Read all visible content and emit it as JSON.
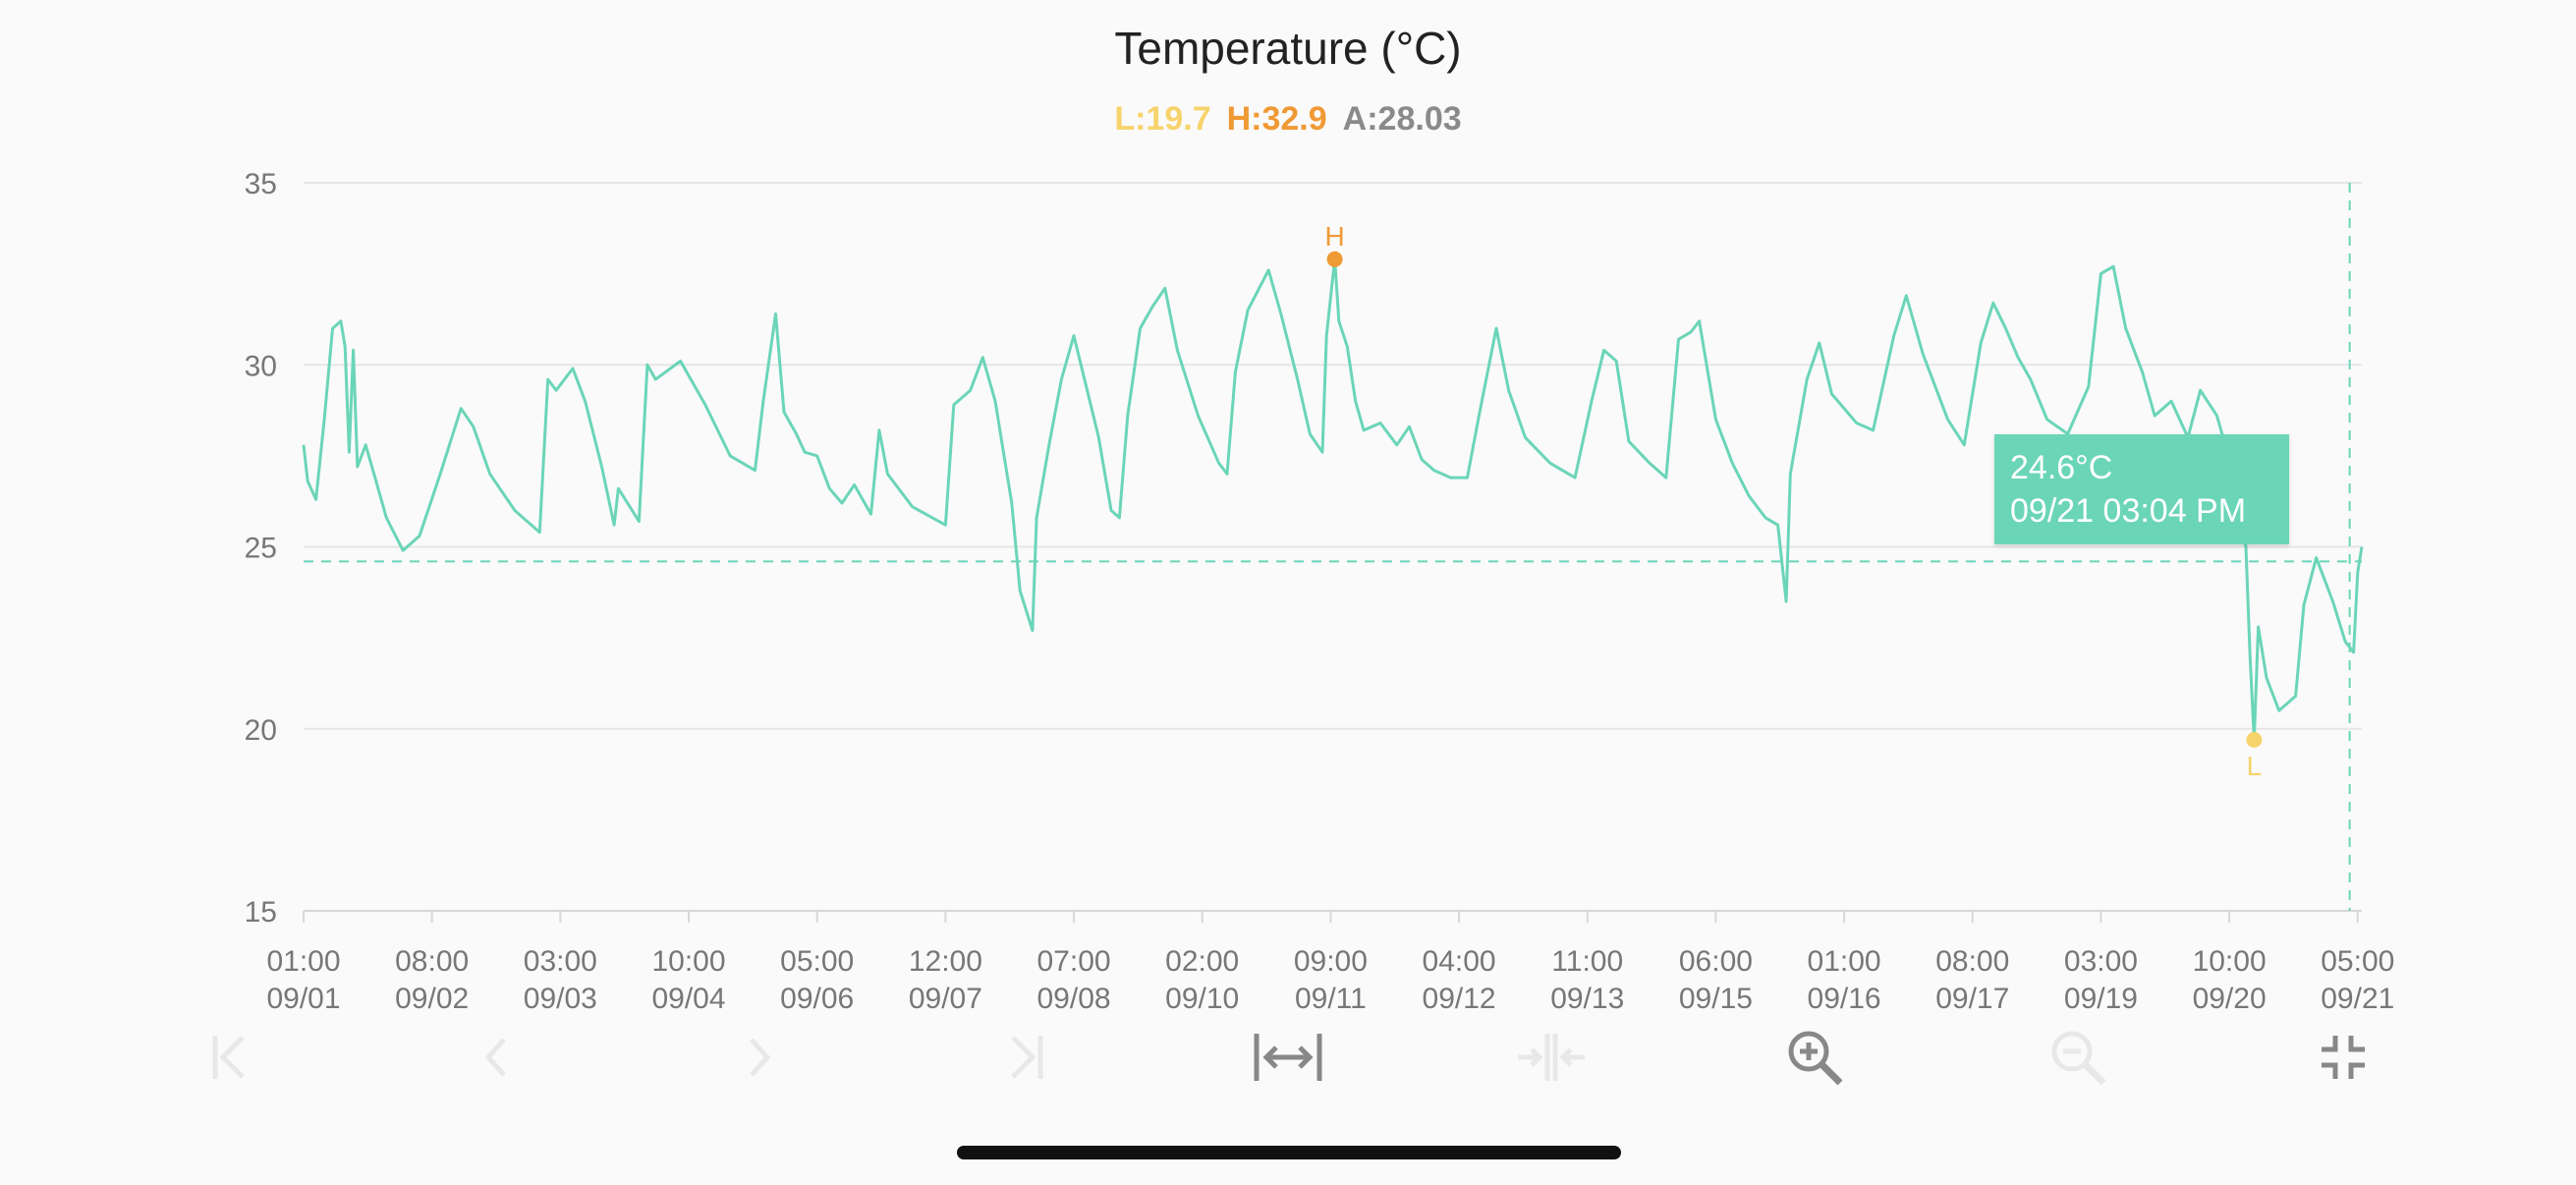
{
  "header": {
    "title": "Temperature (°C)",
    "low": "L:19.7",
    "high": "H:32.9",
    "avg": "A:28.03"
  },
  "tooltip": {
    "value": "24.6°C",
    "time": "09/21 03:04 PM"
  },
  "markers": {
    "high": "H",
    "low": "L"
  },
  "colors": {
    "line": "#6bd5b8",
    "low": "#f7d36b",
    "high": "#f09a35",
    "avg": "#8a8a8a",
    "grid": "#e6e6e6",
    "tick_text": "#777777"
  },
  "toolbar": [
    {
      "name": "jump-to-start-icon",
      "enabled": false
    },
    {
      "name": "previous-icon",
      "enabled": false
    },
    {
      "name": "next-icon",
      "enabled": false
    },
    {
      "name": "jump-to-end-icon",
      "enabled": false
    },
    {
      "name": "fit-width-icon",
      "enabled": true
    },
    {
      "name": "compress-width-icon",
      "enabled": false
    },
    {
      "name": "zoom-in-icon",
      "enabled": true
    },
    {
      "name": "zoom-out-icon",
      "enabled": false
    },
    {
      "name": "collapse-icon",
      "enabled": true
    }
  ],
  "chart_data": {
    "type": "line",
    "title": "Temperature (°C)",
    "xlabel": "",
    "ylabel": "",
    "ylim": [
      15,
      35
    ],
    "yticks": [
      15,
      20,
      25,
      30,
      35
    ],
    "grid": true,
    "x_start": "09/01 01:00",
    "x_end": "09/21 18:00",
    "xticks": [
      {
        "time": "09/01 01:00",
        "label": [
          "01:00",
          "09/01"
        ]
      },
      {
        "time": "09/02 08:00",
        "label": [
          "08:00",
          "09/02"
        ]
      },
      {
        "time": "09/03 15:00",
        "label": [
          "03:00",
          "09/03"
        ]
      },
      {
        "time": "09/04 22:00",
        "label": [
          "10:00",
          "09/04"
        ]
      },
      {
        "time": "09/06 05:00",
        "label": [
          "05:00",
          "09/06"
        ]
      },
      {
        "time": "09/07 12:00",
        "label": [
          "12:00",
          "09/07"
        ]
      },
      {
        "time": "09/08 19:00",
        "label": [
          "07:00",
          "09/08"
        ]
      },
      {
        "time": "09/10 02:00",
        "label": [
          "02:00",
          "09/10"
        ]
      },
      {
        "time": "09/11 09:00",
        "label": [
          "09:00",
          "09/11"
        ]
      },
      {
        "time": "09/12 16:00",
        "label": [
          "04:00",
          "09/12"
        ]
      },
      {
        "time": "09/13 23:00",
        "label": [
          "11:00",
          "09/13"
        ]
      },
      {
        "time": "09/15 06:00",
        "label": [
          "06:00",
          "09/15"
        ]
      },
      {
        "time": "09/16 13:00",
        "label": [
          "01:00",
          "09/16"
        ]
      },
      {
        "time": "09/17 20:00",
        "label": [
          "08:00",
          "09/17"
        ]
      },
      {
        "time": "09/19 03:00",
        "label": [
          "03:00",
          "09/19"
        ]
      },
      {
        "time": "09/20 10:00",
        "label": [
          "10:00",
          "09/20"
        ]
      },
      {
        "time": "09/21 17:00",
        "label": [
          "05:00",
          "09/21"
        ]
      }
    ],
    "high": {
      "time": "09/11 10:00",
      "value": 32.9
    },
    "low": {
      "time": "09/20 16:00",
      "value": 19.7
    },
    "average": 28.03,
    "crosshair": {
      "time": "09/21 15:04",
      "value": 24.6
    },
    "series": [
      {
        "points": [
          [
            "09/01 01:00",
            27.8
          ],
          [
            "09/01 02:00",
            26.8
          ],
          [
            "09/01 04:00",
            26.3
          ],
          [
            "09/01 06:00",
            28.5
          ],
          [
            "09/01 08:00",
            31.0
          ],
          [
            "09/01 10:00",
            31.2
          ],
          [
            "09/01 11:00",
            30.5
          ],
          [
            "09/01 12:00",
            27.6
          ],
          [
            "09/01 13:00",
            30.4
          ],
          [
            "09/01 14:00",
            27.2
          ],
          [
            "09/01 16:00",
            27.8
          ],
          [
            "09/01 18:00",
            27.0
          ],
          [
            "09/01 21:00",
            25.8
          ],
          [
            "09/02 01:00",
            24.9
          ],
          [
            "09/02 05:00",
            25.3
          ],
          [
            "09/02 10:00",
            27.0
          ],
          [
            "09/02 15:00",
            28.8
          ],
          [
            "09/02 18:00",
            28.3
          ],
          [
            "09/02 22:00",
            27.0
          ],
          [
            "09/03 04:00",
            26.0
          ],
          [
            "09/03 10:00",
            25.4
          ],
          [
            "09/03 12:00",
            29.6
          ],
          [
            "09/03 14:00",
            29.3
          ],
          [
            "09/03 18:00",
            29.9
          ],
          [
            "09/03 21:00",
            29.0
          ],
          [
            "09/04 01:00",
            27.2
          ],
          [
            "09/04 04:00",
            25.6
          ],
          [
            "09/04 05:00",
            26.6
          ],
          [
            "09/04 10:00",
            25.7
          ],
          [
            "09/04 12:00",
            30.0
          ],
          [
            "09/04 14:00",
            29.6
          ],
          [
            "09/04 20:00",
            30.1
          ],
          [
            "09/05 02:00",
            28.9
          ],
          [
            "09/05 08:00",
            27.5
          ],
          [
            "09/05 14:00",
            27.1
          ],
          [
            "09/05 16:00",
            29.0
          ],
          [
            "09/05 19:00",
            31.4
          ],
          [
            "09/05 21:00",
            28.7
          ],
          [
            "09/06 00:00",
            28.1
          ],
          [
            "09/06 02:00",
            27.6
          ],
          [
            "09/06 05:00",
            27.5
          ],
          [
            "09/06 08:00",
            26.6
          ],
          [
            "09/06 11:00",
            26.2
          ],
          [
            "09/06 14:00",
            26.7
          ],
          [
            "09/06 18:00",
            25.9
          ],
          [
            "09/06 20:00",
            28.2
          ],
          [
            "09/06 22:00",
            27.0
          ],
          [
            "09/07 04:00",
            26.1
          ],
          [
            "09/07 12:00",
            25.6
          ],
          [
            "09/07 14:00",
            28.9
          ],
          [
            "09/07 18:00",
            29.3
          ],
          [
            "09/07 21:00",
            30.2
          ],
          [
            "09/08 00:00",
            29.0
          ],
          [
            "09/08 04:00",
            26.2
          ],
          [
            "09/08 06:00",
            23.8
          ],
          [
            "09/08 09:00",
            22.7
          ],
          [
            "09/08 10:00",
            25.8
          ],
          [
            "09/08 13:00",
            27.8
          ],
          [
            "09/08 16:00",
            29.6
          ],
          [
            "09/08 19:00",
            30.8
          ],
          [
            "09/08 22:00",
            29.4
          ],
          [
            "09/09 01:00",
            28.0
          ],
          [
            "09/09 04:00",
            26.0
          ],
          [
            "09/09 06:00",
            25.8
          ],
          [
            "09/09 08:00",
            28.6
          ],
          [
            "09/09 11:00",
            31.0
          ],
          [
            "09/09 14:00",
            31.6
          ],
          [
            "09/09 17:00",
            32.1
          ],
          [
            "09/09 20:00",
            30.4
          ],
          [
            "09/10 01:00",
            28.6
          ],
          [
            "09/10 06:00",
            27.3
          ],
          [
            "09/10 08:00",
            27.0
          ],
          [
            "09/10 10:00",
            29.8
          ],
          [
            "09/10 13:00",
            31.5
          ],
          [
            "09/10 18:00",
            32.6
          ],
          [
            "09/10 21:00",
            31.4
          ],
          [
            "09/11 01:00",
            29.6
          ],
          [
            "09/11 04:00",
            28.1
          ],
          [
            "09/11 07:00",
            27.6
          ],
          [
            "09/11 08:00",
            30.8
          ],
          [
            "09/11 10:00",
            32.9
          ],
          [
            "09/11 11:00",
            31.2
          ],
          [
            "09/11 13:00",
            30.5
          ],
          [
            "09/11 15:00",
            29.0
          ],
          [
            "09/11 17:00",
            28.2
          ],
          [
            "09/11 21:00",
            28.4
          ],
          [
            "09/12 01:00",
            27.8
          ],
          [
            "09/12 04:00",
            28.3
          ],
          [
            "09/12 07:00",
            27.4
          ],
          [
            "09/12 10:00",
            27.1
          ],
          [
            "09/12 14:00",
            26.9
          ],
          [
            "09/12 18:00",
            26.9
          ],
          [
            "09/12 21:00",
            28.7
          ],
          [
            "09/13 01:00",
            31.0
          ],
          [
            "09/13 04:00",
            29.3
          ],
          [
            "09/13 08:00",
            28.0
          ],
          [
            "09/13 14:00",
            27.3
          ],
          [
            "09/13 20:00",
            26.9
          ],
          [
            "09/14 00:00",
            29.0
          ],
          [
            "09/14 03:00",
            30.4
          ],
          [
            "09/14 06:00",
            30.1
          ],
          [
            "09/14 09:00",
            27.9
          ],
          [
            "09/14 14:00",
            27.3
          ],
          [
            "09/14 18:00",
            26.9
          ],
          [
            "09/14 21:00",
            30.7
          ],
          [
            "09/15 00:00",
            30.9
          ],
          [
            "09/15 02:00",
            31.2
          ],
          [
            "09/15 06:00",
            28.5
          ],
          [
            "09/15 10:00",
            27.3
          ],
          [
            "09/15 14:00",
            26.4
          ],
          [
            "09/15 18:00",
            25.8
          ],
          [
            "09/15 21:00",
            25.6
          ],
          [
            "09/15 23:00",
            23.5
          ],
          [
            "09/16 00:00",
            27.0
          ],
          [
            "09/16 04:00",
            29.6
          ],
          [
            "09/16 07:00",
            30.6
          ],
          [
            "09/16 10:00",
            29.2
          ],
          [
            "09/16 16:00",
            28.4
          ],
          [
            "09/16 20:00",
            28.2
          ],
          [
            "09/17 01:00",
            30.8
          ],
          [
            "09/17 04:00",
            31.9
          ],
          [
            "09/17 08:00",
            30.3
          ],
          [
            "09/17 14:00",
            28.5
          ],
          [
            "09/17 18:00",
            27.8
          ],
          [
            "09/17 22:00",
            30.6
          ],
          [
            "09/18 01:00",
            31.7
          ],
          [
            "09/18 04:00",
            31.0
          ],
          [
            "09/18 07:00",
            30.2
          ],
          [
            "09/18 10:00",
            29.6
          ],
          [
            "09/18 14:00",
            28.5
          ],
          [
            "09/18 19:00",
            28.1
          ],
          [
            "09/19 00:00",
            29.4
          ],
          [
            "09/19 03:00",
            32.5
          ],
          [
            "09/19 06:00",
            32.7
          ],
          [
            "09/19 09:00",
            31.0
          ],
          [
            "09/19 13:00",
            29.8
          ],
          [
            "09/19 16:00",
            28.6
          ],
          [
            "09/19 20:00",
            29.0
          ],
          [
            "09/20 00:00",
            28.0
          ],
          [
            "09/20 03:00",
            29.3
          ],
          [
            "09/20 07:00",
            28.6
          ],
          [
            "09/20 10:00",
            27.4
          ],
          [
            "09/20 14:00",
            25.0
          ],
          [
            "09/20 15:00",
            22.0
          ],
          [
            "09/20 16:00",
            19.7
          ],
          [
            "09/20 17:00",
            22.8
          ],
          [
            "09/20 19:00",
            21.4
          ],
          [
            "09/20 22:00",
            20.5
          ],
          [
            "09/21 02:00",
            20.9
          ],
          [
            "09/21 04:00",
            23.4
          ],
          [
            "09/21 07:00",
            24.7
          ],
          [
            "09/21 11:00",
            23.5
          ],
          [
            "09/21 14:00",
            22.4
          ],
          [
            "09/21 16:00",
            22.1
          ],
          [
            "09/21 17:00",
            24.3
          ],
          [
            "09/21 18:00",
            25.0
          ]
        ]
      }
    ]
  }
}
